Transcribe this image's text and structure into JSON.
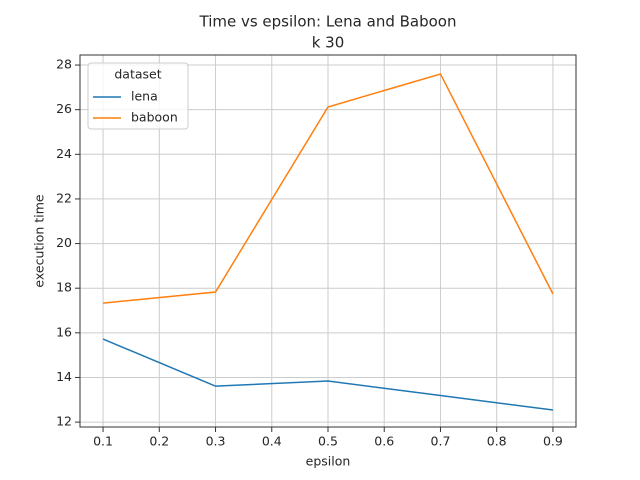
{
  "chart_data": {
    "type": "line",
    "title": "Time vs epsilon: Lena and Baboon",
    "subtitle": "k 30",
    "x_label": "epsilon",
    "y_label": "execution time",
    "x": [
      0.1,
      0.3,
      0.5,
      0.7,
      0.9
    ],
    "series": [
      {
        "name": "lena",
        "color": "#1f77b4",
        "values": [
          15.72,
          13.61,
          13.84,
          13.19,
          12.54
        ]
      },
      {
        "name": "baboon",
        "color": "#ff7f0e",
        "values": [
          17.33,
          17.83,
          26.12,
          27.6,
          17.74
        ]
      }
    ],
    "legend_title": "dataset",
    "legend_position": "upper left",
    "xlim": [
      0.059,
      0.941
    ],
    "xticks": [
      0.1,
      0.2,
      0.3,
      0.4,
      0.5,
      0.6,
      0.7,
      0.8,
      0.9
    ],
    "ylim": [
      11.78,
      28.45
    ],
    "yticks": [
      12,
      14,
      16,
      18,
      20,
      22,
      24,
      26,
      28
    ],
    "grid": true
  }
}
